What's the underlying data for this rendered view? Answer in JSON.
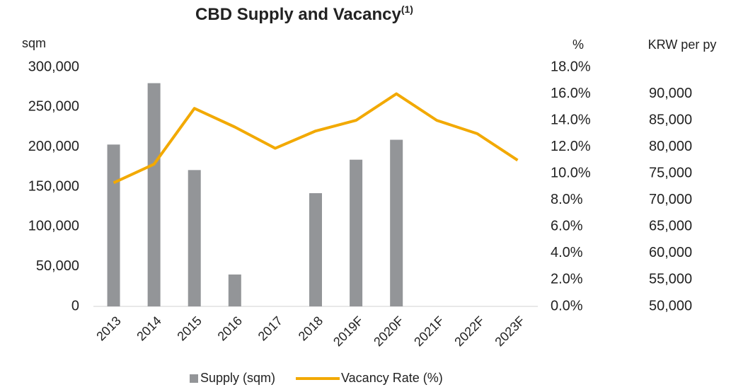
{
  "chart_data": {
    "type": "bar_line",
    "title": "CBD Supply and Vacancy",
    "title_superscript": "(1)",
    "y_label": "sqm",
    "y2_label": "%",
    "y3_label": "KRW per py",
    "categories": [
      "2013",
      "2014",
      "2015",
      "2016",
      "2017",
      "2018",
      "2019F",
      "2020F",
      "2021F",
      "2022F",
      "2023F"
    ],
    "series": [
      {
        "name": "Supply (sqm)",
        "type": "bar",
        "color": "#939598",
        "values": [
          203000,
          280000,
          171000,
          40000,
          null,
          142000,
          184000,
          209000,
          null,
          null,
          null
        ]
      },
      {
        "name": "Vacancy Rate (%)",
        "type": "line",
        "axis": "y2",
        "color": "#f2a900",
        "values": [
          9.3,
          10.7,
          14.9,
          13.5,
          11.9,
          13.2,
          14.0,
          16.0,
          14.0,
          13.0,
          11.0
        ]
      }
    ],
    "ylim": [
      0,
      300000
    ],
    "yticks": [
      0,
      {
        "value": 50000,
        "label": "50,000"
      },
      {
        "value": 100000,
        "label": "100,000"
      },
      {
        "value": 150000,
        "label": "150,000"
      },
      {
        "value": 200000,
        "label": "200,000"
      },
      {
        "value": 250000,
        "label": "250,000"
      },
      {
        "value": 300000,
        "label": "300,000"
      }
    ],
    "y2lim": [
      0,
      18
    ],
    "y2ticks": [
      {
        "value": 0,
        "label": "0.0%"
      },
      {
        "value": 2,
        "label": "2.0%"
      },
      {
        "value": 4,
        "label": "4.0%"
      },
      {
        "value": 6,
        "label": "6.0%"
      },
      {
        "value": 8,
        "label": "8.0%"
      },
      {
        "value": 10,
        "label": "10.0%"
      },
      {
        "value": 12,
        "label": "12.0%"
      },
      {
        "value": 14,
        "label": "14.0%"
      },
      {
        "value": 16,
        "label": "16.0%"
      },
      {
        "value": 18,
        "label": "18.0%"
      }
    ],
    "y3lim": [
      50000,
      95000
    ],
    "y3ticks": [
      {
        "value": 50000,
        "label": "50,000"
      },
      {
        "value": 55000,
        "label": "55,000"
      },
      {
        "value": 60000,
        "label": "60,000"
      },
      {
        "value": 65000,
        "label": "65,000"
      },
      {
        "value": 70000,
        "label": "70,000"
      },
      {
        "value": 75000,
        "label": "75,000"
      },
      {
        "value": 80000,
        "label": "80,000"
      },
      {
        "value": 85000,
        "label": "85,000"
      },
      {
        "value": 90000,
        "label": "90,000"
      }
    ],
    "grid": false,
    "legend": "bottom"
  }
}
